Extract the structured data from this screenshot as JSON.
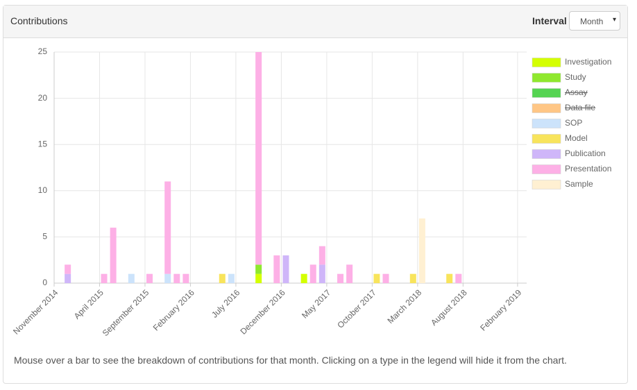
{
  "header": {
    "title": "Contributions",
    "interval_label": "Interval",
    "interval_value": "Month"
  },
  "chart_data": {
    "type": "bar",
    "stacked": true,
    "x": [
      "2014-12",
      "2015-04",
      "2015-05",
      "2015-07",
      "2015-09",
      "2015-11",
      "2015-12",
      "2016-01",
      "2016-05",
      "2016-06",
      "2016-09",
      "2016-11",
      "2016-12",
      "2017-02",
      "2017-03",
      "2017-04",
      "2017-06",
      "2017-07",
      "2017-10",
      "2017-11",
      "2018-02",
      "2018-03",
      "2018-06",
      "2018-07"
    ],
    "series": [
      {
        "name": "Investigation",
        "color": "#d4ff00",
        "values": [
          0,
          0,
          0,
          0,
          0,
          0,
          0,
          0,
          0,
          0,
          1,
          0,
          0,
          1,
          0,
          0,
          0,
          0,
          0,
          0,
          0,
          0,
          0,
          0
        ]
      },
      {
        "name": "Study",
        "color": "#8fe82e",
        "values": [
          0,
          0,
          0,
          0,
          0,
          0,
          0,
          0,
          0,
          0,
          1,
          0,
          0,
          0,
          0,
          0,
          0,
          0,
          0,
          0,
          0,
          0,
          0,
          0
        ]
      },
      {
        "name": "Assay",
        "color": "#55d452",
        "hidden": true,
        "values": [
          null,
          null,
          null,
          null,
          null,
          null,
          null,
          null,
          null,
          null,
          null,
          null,
          null,
          null,
          null,
          null,
          null,
          null,
          null,
          null,
          null,
          null,
          null,
          null
        ]
      },
      {
        "name": "Data file",
        "color": "#ffc685",
        "hidden": true,
        "values": [
          null,
          null,
          null,
          null,
          null,
          null,
          null,
          null,
          null,
          null,
          null,
          null,
          null,
          null,
          null,
          null,
          null,
          null,
          null,
          null,
          null,
          null,
          null,
          null
        ]
      },
      {
        "name": "SOP",
        "color": "#cce3fb",
        "values": [
          0,
          0,
          0,
          1,
          0,
          1,
          0,
          0,
          0,
          1,
          0,
          0,
          0,
          0,
          0,
          0,
          0,
          0,
          0,
          0,
          0,
          0,
          0,
          0
        ]
      },
      {
        "name": "Model",
        "color": "#f8e45c",
        "values": [
          0,
          0,
          0,
          0,
          0,
          0,
          0,
          0,
          1,
          0,
          0,
          0,
          0,
          0,
          0,
          0,
          0,
          0,
          1,
          0,
          1,
          0,
          1,
          0
        ]
      },
      {
        "name": "Publication",
        "color": "#cfb6f9",
        "values": [
          1,
          0,
          0,
          0,
          0,
          0,
          0,
          0,
          0,
          0,
          0,
          0,
          3,
          0,
          0,
          2,
          0,
          0,
          0,
          0,
          0,
          0,
          0,
          0
        ]
      },
      {
        "name": "Presentation",
        "color": "#fdb0e6",
        "values": [
          1,
          1,
          6,
          0,
          1,
          10,
          1,
          1,
          0,
          0,
          23,
          3,
          0,
          0,
          2,
          2,
          1,
          2,
          0,
          1,
          0,
          0,
          0,
          1
        ]
      },
      {
        "name": "Sample",
        "color": "#fff0d2",
        "values": [
          0,
          0,
          0,
          0,
          0,
          0,
          0,
          0,
          0,
          0,
          0,
          0,
          0,
          0,
          0,
          0,
          0,
          0,
          0,
          0,
          0,
          7,
          0,
          0
        ]
      }
    ],
    "xlim": [
      "2014-11",
      "2019-03"
    ],
    "xticks": [
      {
        "value": "2014-11",
        "label": "November 2014"
      },
      {
        "value": "2015-04",
        "label": "April 2015"
      },
      {
        "value": "2015-09",
        "label": "September 2015"
      },
      {
        "value": "2016-02",
        "label": "February 2016"
      },
      {
        "value": "2016-07",
        "label": "July 2016"
      },
      {
        "value": "2016-12",
        "label": "December 2016"
      },
      {
        "value": "2017-05",
        "label": "May 2017"
      },
      {
        "value": "2017-10",
        "label": "October 2017"
      },
      {
        "value": "2018-03",
        "label": "March 2018"
      },
      {
        "value": "2018-08",
        "label": "August 2018"
      },
      {
        "value": "2019-02",
        "label": "February 2019"
      }
    ],
    "ylim": [
      0,
      25
    ],
    "yticks": [
      0,
      5,
      10,
      15,
      20,
      25
    ],
    "grid": true,
    "legend": "right",
    "note": "Mouse over a bar to see the breakdown of contributions for that month. Clicking on a type in the legend will hide it from the chart."
  }
}
